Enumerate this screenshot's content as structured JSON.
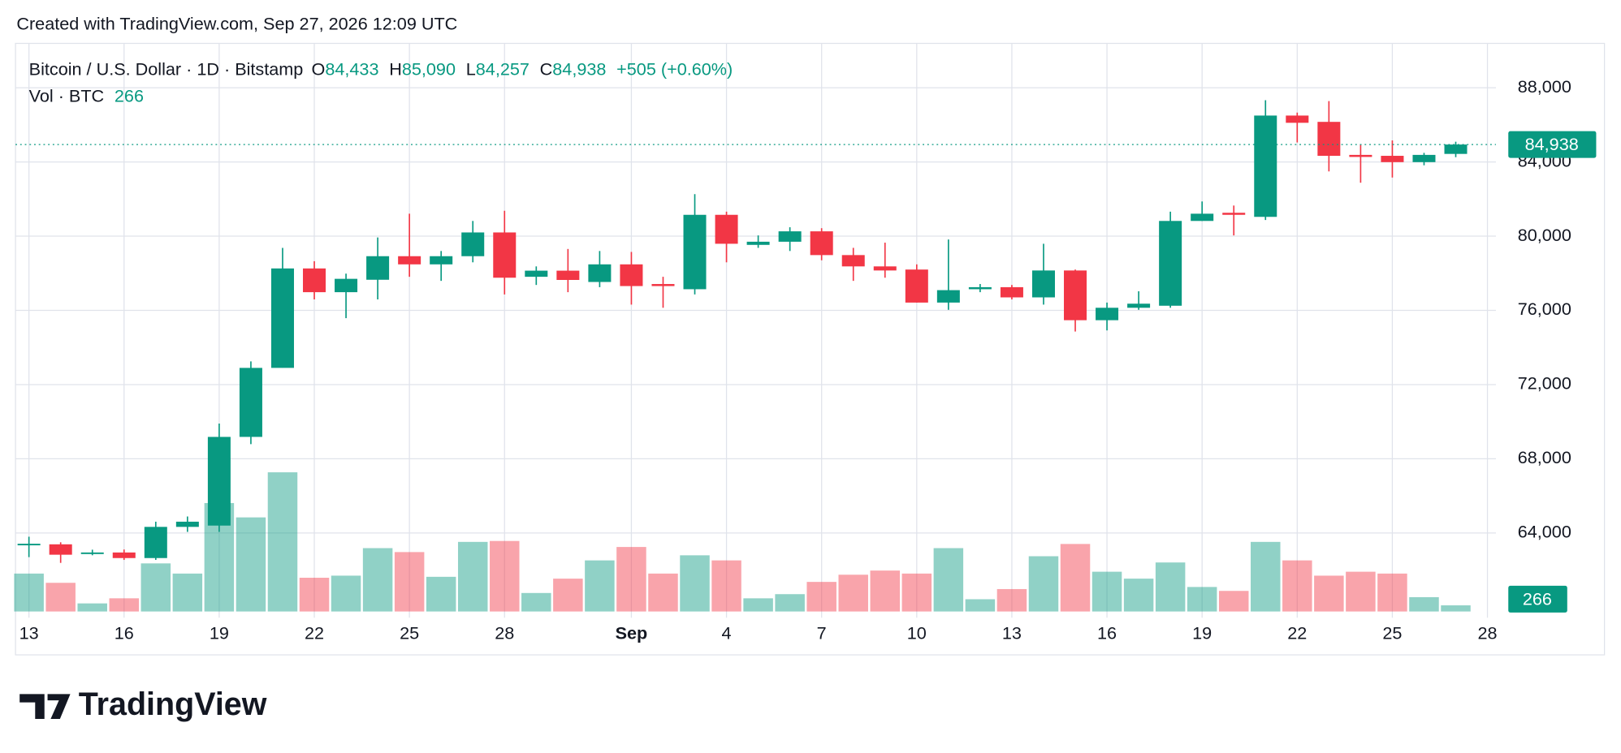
{
  "chart_data": {
    "type": "candlestick",
    "caption": "Created with TradingView.com, Sep 27, 2026 12:09 UTC",
    "title": "Bitcoin / U.S. Dollar · 1D · Bitstamp",
    "legend": {
      "open_label": "O",
      "open": "84,433",
      "high_label": "H",
      "high": "85,090",
      "low_label": "L",
      "low": "84,257",
      "close_label": "C",
      "close": "84,938",
      "change": "+505 (+0.60%)"
    },
    "volume_title": "Vol · BTC",
    "brand": "TradingView",
    "categories": [
      "13",
      null,
      null,
      "16",
      null,
      null,
      "19",
      null,
      null,
      "22",
      null,
      null,
      "25",
      null,
      null,
      "28",
      null,
      null,
      null,
      "Sep",
      null,
      null,
      "4",
      null,
      null,
      "7",
      null,
      null,
      "10",
      null,
      null,
      "13",
      null,
      null,
      "16",
      null,
      null,
      "19",
      null,
      null,
      "22",
      null,
      null,
      "25",
      null,
      null,
      "28"
    ],
    "open": [
      63380,
      63390,
      62900,
      62950,
      62650,
      64330,
      64400,
      69180,
      72900,
      78260,
      76980,
      77650,
      78920,
      78480,
      78920,
      80200,
      77810,
      78140,
      77530,
      78480,
      77420,
      77140,
      81150,
      79530,
      79700,
      80260,
      78980,
      78370,
      78200,
      76420,
      77140,
      77250,
      76700,
      78150,
      75470,
      76140,
      76250,
      80820,
      81260,
      81040,
      86500,
      86160,
      84380,
      84330,
      83990,
      84433,
      null
    ],
    "high": [
      63800,
      63500,
      63100,
      63110,
      64610,
      64890,
      69900,
      73250,
      79370,
      78650,
      77980,
      79930,
      81210,
      79200,
      80820,
      81370,
      78370,
      79310,
      79200,
      79150,
      77810,
      82265,
      81320,
      80040,
      80480,
      80430,
      79370,
      79650,
      78480,
      79820,
      77420,
      77370,
      79590,
      78200,
      76420,
      77030,
      81320,
      81870,
      81650,
      87330,
      86660,
      87280,
      84940,
      85160,
      84490,
      85090,
      null
    ],
    "low": [
      62700,
      62390,
      62800,
      62550,
      62550,
      64060,
      64060,
      68790,
      72910,
      76590,
      75580,
      76590,
      77810,
      77590,
      78590,
      76860,
      77370,
      76980,
      77250,
      76310,
      76140,
      76860,
      78590,
      79370,
      79200,
      78700,
      77590,
      77760,
      76420,
      76030,
      76980,
      76590,
      76310,
      74860,
      74920,
      76030,
      76140,
      80820,
      80040,
      80870,
      85050,
      83490,
      82880,
      83160,
      83820,
      84257,
      null
    ],
    "close": [
      63420,
      62830,
      62950,
      62650,
      64330,
      64610,
      69180,
      72900,
      78260,
      76980,
      77700,
      78920,
      78480,
      78920,
      80200,
      77760,
      78140,
      77640,
      78480,
      77310,
      77310,
      81150,
      79590,
      79700,
      80260,
      78980,
      78370,
      78150,
      76420,
      77090,
      77250,
      76700,
      78150,
      75470,
      76140,
      76360,
      80820,
      81210,
      81150,
      86500,
      86110,
      84330,
      84270,
      83990,
      84380,
      84938,
      null
    ],
    "volumes": [
      1640,
      1240,
      350,
      570,
      2080,
      1640,
      4690,
      4070,
      6020,
      1460,
      1550,
      2740,
      2570,
      1500,
      3010,
      3050,
      800,
      1420,
      2210,
      2790,
      1640,
      2430,
      2210,
      570,
      750,
      1280,
      1590,
      1770,
      1640,
      2740,
      530,
      970,
      2390,
      2920,
      1720,
      1420,
      2120,
      1060,
      890,
      3010,
      2210,
      1550,
      1720,
      1640,
      620,
      266,
      null
    ],
    "ylim": [
      59770,
      90390
    ],
    "yticks": [
      {
        "value": 64000,
        "label": "64,000"
      },
      {
        "value": 68000,
        "label": "68,000"
      },
      {
        "value": 72000,
        "label": "72,000"
      },
      {
        "value": 76000,
        "label": "76,000"
      },
      {
        "value": 80000,
        "label": "80,000"
      },
      {
        "value": 84000,
        "label": "84,000"
      },
      {
        "value": 88000,
        "label": "88,000"
      }
    ],
    "up_color": "#089981",
    "down_color": "#f23645",
    "grid": true,
    "last_price_line": true
  }
}
